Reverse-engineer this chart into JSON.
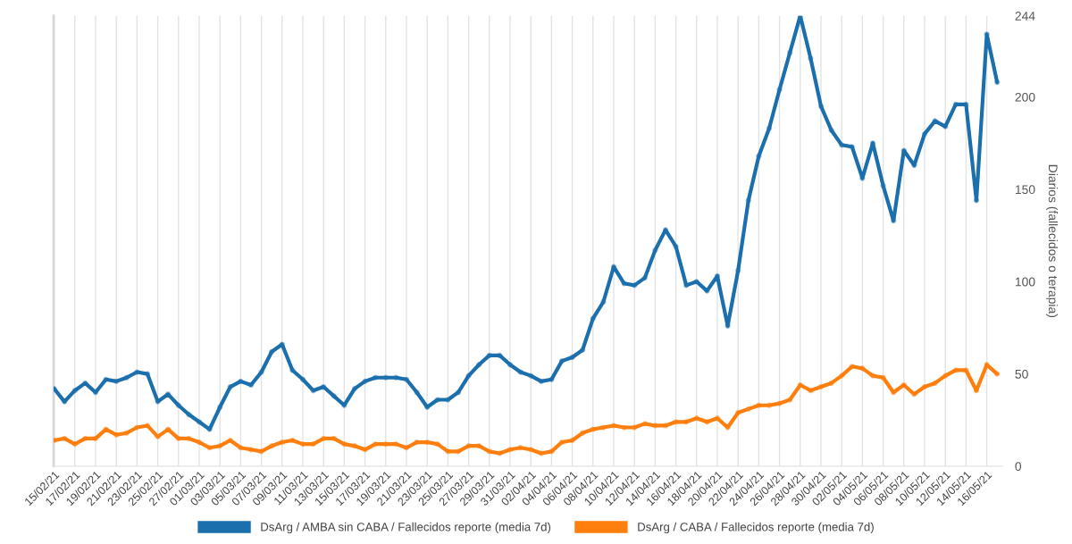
{
  "chart_data": {
    "type": "line",
    "categories": [
      "15/02/21",
      null,
      "17/02/21",
      null,
      "19/02/21",
      null,
      "21/02/21",
      null,
      "23/02/21",
      null,
      "25/02/21",
      null,
      "27/02/21",
      null,
      "01/03/21",
      null,
      "03/03/21",
      null,
      "05/03/21",
      null,
      "07/03/21",
      null,
      "09/03/21",
      null,
      "11/03/21",
      null,
      "13/03/21",
      null,
      "15/03/21",
      null,
      "17/03/21",
      null,
      "19/03/21",
      null,
      "21/03/21",
      null,
      "23/03/21",
      null,
      "25/03/21",
      null,
      "27/03/21",
      null,
      "29/03/21",
      null,
      "31/03/21",
      null,
      "02/04/21",
      null,
      "04/04/21",
      null,
      "06/04/21",
      null,
      "08/04/21",
      null,
      "10/04/21",
      null,
      "12/04/21",
      null,
      "14/04/21",
      null,
      "16/04/21",
      null,
      "18/04/21",
      null,
      "20/04/21",
      null,
      "22/04/21",
      null,
      "24/04/21",
      null,
      "26/04/21",
      null,
      "28/04/21",
      null,
      "30/04/21",
      null,
      "02/05/21",
      null,
      "04/05/21",
      null,
      "06/05/21",
      null,
      "08/05/21",
      null,
      "10/05/21",
      null,
      "12/05/21",
      null,
      "14/05/21",
      null,
      "16/05/21",
      null
    ],
    "series": [
      {
        "name": "DsArg / AMBA sin CABA / Fallecidos reporte (media 7d)",
        "color": "#1c6fad",
        "values": [
          42,
          35,
          41,
          45,
          40,
          47,
          46,
          48,
          51,
          50,
          35,
          39,
          33,
          28,
          24,
          20,
          32,
          43,
          46,
          44,
          51,
          62,
          66,
          52,
          47,
          41,
          43,
          38,
          33,
          42,
          46,
          48,
          48,
          48,
          47,
          40,
          32,
          36,
          36,
          40,
          49,
          55,
          60,
          60,
          55,
          51,
          49,
          46,
          47,
          57,
          59,
          63,
          80,
          89,
          108,
          99,
          98,
          102,
          117,
          128,
          119,
          98,
          100,
          95,
          103,
          76,
          106,
          144,
          168,
          183,
          204,
          224,
          244,
          221,
          195,
          182,
          174,
          173,
          156,
          175,
          152,
          133,
          171,
          163,
          180,
          187,
          184,
          196,
          196,
          144,
          234,
          208
        ]
      },
      {
        "name": "DsArg / CABA / Fallecidos reporte (media 7d)",
        "color": "#ff7f0e",
        "values": [
          14,
          15,
          12,
          15,
          15,
          20,
          17,
          18,
          21,
          22,
          16,
          20,
          15,
          15,
          13,
          10,
          11,
          14,
          10,
          9,
          8,
          11,
          13,
          14,
          12,
          12,
          15,
          15,
          12,
          11,
          9,
          12,
          12,
          12,
          10,
          13,
          13,
          12,
          8,
          8,
          11,
          11,
          8,
          7,
          9,
          10,
          9,
          7,
          8,
          13,
          14,
          18,
          20,
          21,
          22,
          21,
          21,
          23,
          22,
          22,
          24,
          24,
          26,
          24,
          26,
          21,
          29,
          31,
          33,
          33,
          34,
          36,
          44,
          41,
          43,
          45,
          49,
          54,
          53,
          49,
          48,
          40,
          44,
          39,
          43,
          45,
          49,
          52,
          52,
          41,
          55,
          50
        ]
      }
    ],
    "ylabel": "Diarios (fallecidos o terapia)",
    "ylim": [
      0,
      244
    ],
    "yticks": [
      0,
      50,
      100,
      150,
      200,
      244
    ],
    "grid": "x",
    "legend": "bottom",
    "marker": "circle",
    "line_style": "solid"
  }
}
